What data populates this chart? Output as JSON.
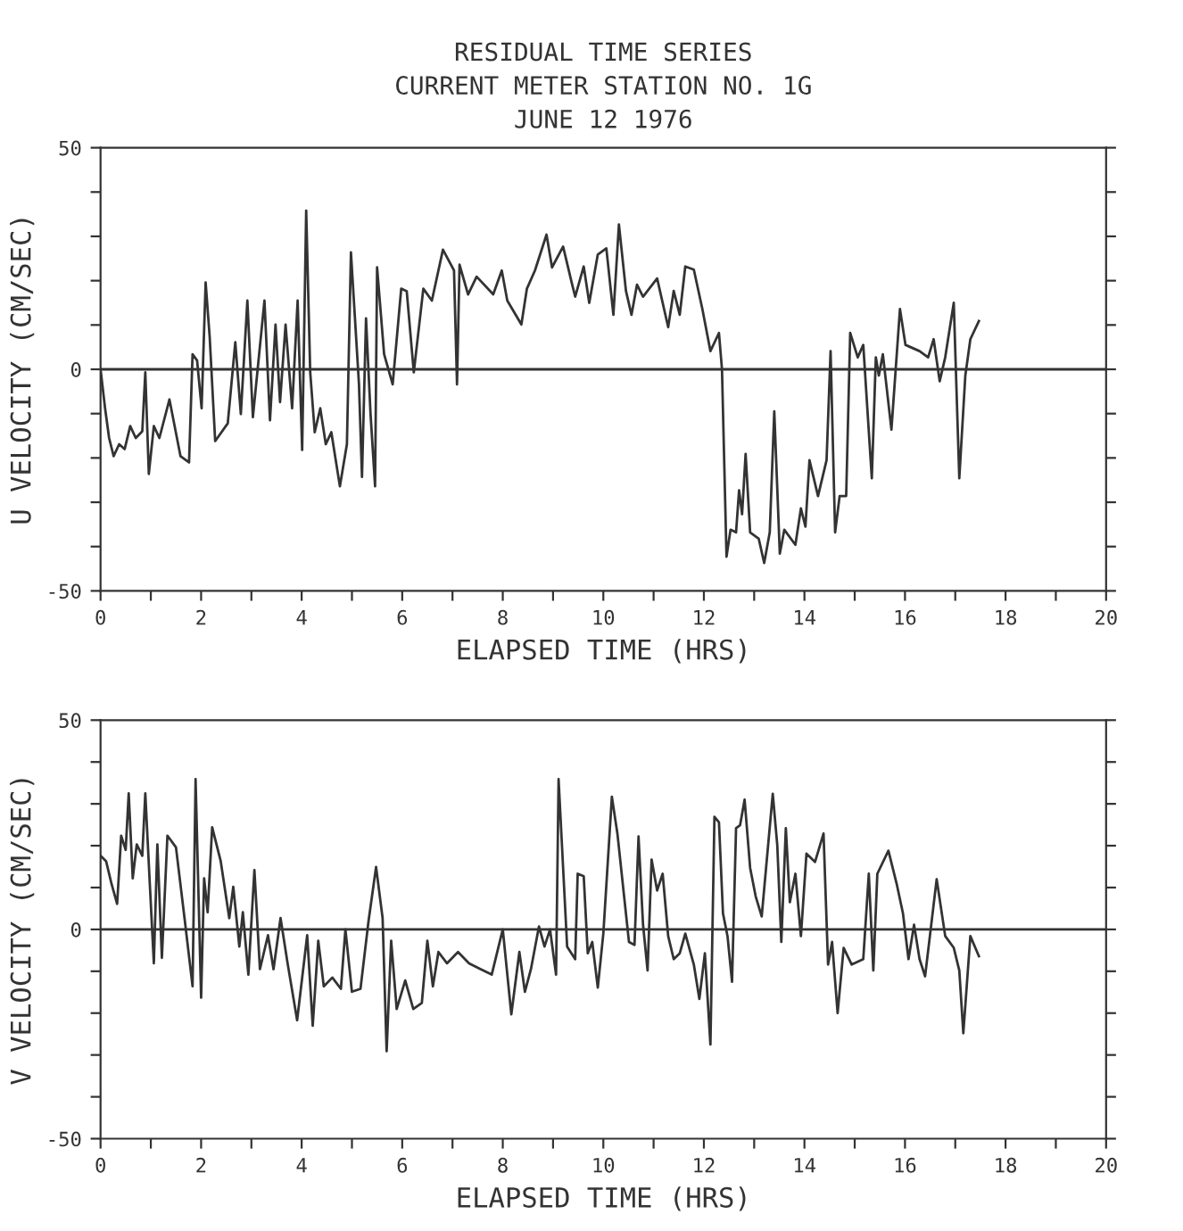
{
  "chart_data": [
    {
      "type": "line",
      "title": "RESIDUAL TIME SERIES",
      "subtitle": "CURRENT METER STATION NO. 1G\nJUNE 12 1976",
      "xlabel": "ELAPSED TIME (HRS)",
      "ylabel": "U VELOCITY (CM/SEC)",
      "xlim": [
        0,
        20
      ],
      "ylim": [
        -50,
        50
      ],
      "xticks": [
        0,
        {
          "value": 1,
          "label": null
        },
        2,
        {
          "value": 3,
          "label": null
        },
        4,
        {
          "value": 5,
          "label": null
        },
        6,
        {
          "value": 7,
          "label": null
        },
        8,
        {
          "value": 9,
          "label": null
        },
        10,
        {
          "value": 11,
          "label": null
        },
        12,
        {
          "value": 13,
          "label": null
        },
        14,
        {
          "value": 15,
          "label": null
        },
        16,
        {
          "value": 17,
          "label": null
        },
        18,
        {
          "value": 19,
          "label": null
        },
        20
      ],
      "yticks": [
        -50,
        {
          "value": -40,
          "label": null
        },
        {
          "value": -30,
          "label": null
        },
        {
          "value": -20,
          "label": null
        },
        {
          "value": -10,
          "label": null
        },
        0,
        {
          "value": 10,
          "label": null
        },
        {
          "value": 20,
          "label": null
        },
        {
          "value": 30,
          "label": null
        },
        {
          "value": 40,
          "label": null
        },
        50
      ],
      "ref_lines": [
        {
          "axis": "y",
          "value": 0,
          "color": "#333333"
        }
      ],
      "grid": false,
      "legend": false,
      "marker": "none",
      "line_style": "solid",
      "series": [
        {
          "color": "#333333",
          "x": [
            0,
            0.09,
            0.17,
            0.26,
            0.37,
            0.48,
            0.59,
            0.7,
            0.83,
            0.89,
            0.96,
            1.06,
            1.17,
            1.37,
            1.59,
            1.76,
            1.83,
            1.92,
            2.01,
            2.09,
            2.17,
            2.28,
            2.53,
            2.68,
            2.79,
            2.92,
            3.03,
            3.26,
            3.37,
            3.48,
            3.57,
            3.68,
            3.81,
            3.92,
            4.01,
            4.09,
            4.17,
            4.26,
            4.37,
            4.48,
            4.59,
            4.76,
            4.9,
            4.98,
            5.14,
            5.2,
            5.28,
            5.37,
            5.46,
            5.5,
            5.64,
            5.81,
            5.98,
            6.09,
            6.23,
            6.42,
            6.59,
            6.81,
            7.03,
            7.09,
            7.14,
            7.31,
            7.48,
            7.81,
            7.98,
            8.09,
            8.37,
            8.48,
            8.64,
            8.87,
            8.98,
            9.2,
            9.37,
            9.44,
            9.61,
            9.72,
            9.89,
            10.06,
            10.2,
            10.31,
            10.45,
            10.56,
            10.67,
            10.79,
            11.07,
            11.29,
            11.4,
            11.52,
            11.63,
            11.8,
            11.97,
            12.13,
            12.3,
            12.36,
            12.45,
            12.53,
            12.64,
            12.7,
            12.76,
            12.83,
            12.92,
            13.09,
            13.2,
            13.31,
            13.4,
            13.51,
            13.6,
            13.82,
            13.93,
            14.02,
            14.1,
            14.27,
            14.44,
            14.52,
            14.61,
            14.7,
            14.83,
            14.91,
            15.06,
            15.17,
            15.34,
            15.42,
            15.48,
            15.56,
            15.73,
            15.9,
            16.01,
            16.29,
            16.46,
            16.57,
            16.69,
            16.8,
            16.97,
            17.08,
            17.2,
            17.3,
            17.47
          ],
          "values": [
            0,
            -8.8,
            -15.5,
            -19.6,
            -16.9,
            -18,
            -12.8,
            -15.5,
            -14,
            -0.7,
            -23.6,
            -12.8,
            -15.5,
            -6.8,
            -19.6,
            -21,
            3.4,
            2,
            -8.8,
            19.6,
            7.4,
            -16.2,
            -12.2,
            6.1,
            -10.1,
            15.5,
            -10.8,
            15.5,
            -11.5,
            10.1,
            -7.4,
            10.1,
            -8.8,
            15.5,
            -18.2,
            35.8,
            -0.7,
            -14.2,
            -8.8,
            -16.9,
            -14.2,
            -26.4,
            -16.9,
            26.4,
            -3.4,
            -24.3,
            11.5,
            -10.1,
            -26.4,
            23,
            3.4,
            -3.4,
            18.2,
            17.6,
            -0.7,
            18.2,
            15.5,
            27,
            22.3,
            -3.4,
            23.6,
            16.9,
            20.9,
            16.9,
            22.3,
            15.5,
            10.1,
            18.2,
            22.3,
            30.4,
            23,
            27.7,
            19.6,
            16.4,
            23.2,
            15,
            25.9,
            27.3,
            12.3,
            32.7,
            17.7,
            12.3,
            19.1,
            16.4,
            20.5,
            9.5,
            17.7,
            12.3,
            23.2,
            22.5,
            13.6,
            4.1,
            8.2,
            0,
            -42.3,
            -36.2,
            -36.8,
            -27.3,
            -32.7,
            -19.1,
            -36.8,
            -38.2,
            -43.7,
            -36.8,
            -9.5,
            -41.6,
            -36.2,
            -39.6,
            -31.4,
            -35.5,
            -20.5,
            -28.6,
            -20.5,
            4.1,
            -36.8,
            -28.6,
            -28.6,
            8.2,
            2.7,
            5.5,
            -24.6,
            2.7,
            -1.4,
            3.4,
            -13.6,
            13.6,
            5.5,
            4.1,
            2.7,
            6.8,
            -2.7,
            2.7,
            15,
            -24.6,
            -1.4,
            6.8,
            10.9
          ]
        }
      ]
    },
    {
      "type": "line",
      "xlabel": "ELAPSED TIME (HRS)",
      "ylabel": "V VELOCITY (CM/SEC)",
      "xlim": [
        0,
        20
      ],
      "ylim": [
        -50,
        50
      ],
      "xticks": [
        0,
        {
          "value": 1,
          "label": null
        },
        2,
        {
          "value": 3,
          "label": null
        },
        4,
        {
          "value": 5,
          "label": null
        },
        6,
        {
          "value": 7,
          "label": null
        },
        8,
        {
          "value": 9,
          "label": null
        },
        10,
        {
          "value": 11,
          "label": null
        },
        12,
        {
          "value": 13,
          "label": null
        },
        14,
        {
          "value": 15,
          "label": null
        },
        16,
        {
          "value": 17,
          "label": null
        },
        18,
        {
          "value": 19,
          "label": null
        },
        20
      ],
      "yticks": [
        -50,
        {
          "value": -40,
          "label": null
        },
        {
          "value": -30,
          "label": null
        },
        {
          "value": -20,
          "label": null
        },
        {
          "value": -10,
          "label": null
        },
        0,
        {
          "value": 10,
          "label": null
        },
        {
          "value": 20,
          "label": null
        },
        {
          "value": 30,
          "label": null
        },
        {
          "value": 40,
          "label": null
        },
        50
      ],
      "ref_lines": [
        {
          "axis": "y",
          "value": 0,
          "color": "#333333"
        }
      ],
      "grid": false,
      "legend": false,
      "marker": "none",
      "line_style": "solid",
      "series": [
        {
          "color": "#333333",
          "x": [
            0,
            0.11,
            0.22,
            0.33,
            0.41,
            0.5,
            0.56,
            0.64,
            0.72,
            0.83,
            0.89,
            0.98,
            1.06,
            1.13,
            1.22,
            1.33,
            1.5,
            1.67,
            1.83,
            1.89,
            2.0,
            2.06,
            2.13,
            2.22,
            2.39,
            2.56,
            2.64,
            2.76,
            2.83,
            2.94,
            3.06,
            3.17,
            3.33,
            3.44,
            3.58,
            3.72,
            3.91,
            4.11,
            4.22,
            4.33,
            4.44,
            4.61,
            4.78,
            4.87,
            5.0,
            5.17,
            5.33,
            5.48,
            5.61,
            5.69,
            5.78,
            5.89,
            6.06,
            6.22,
            6.39,
            6.5,
            6.61,
            6.72,
            6.89,
            7.11,
            7.33,
            7.56,
            7.78,
            8.0,
            8.17,
            8.33,
            8.44,
            8.56,
            8.72,
            8.83,
            8.94,
            9.06,
            9.11,
            9.28,
            9.44,
            9.49,
            9.61,
            9.69,
            9.78,
            9.89,
            10,
            10.17,
            10.28,
            10.51,
            10.62,
            10.7,
            10.79,
            10.88,
            10.96,
            11.07,
            11.18,
            11.29,
            11.4,
            11.52,
            11.63,
            11.8,
            11.91,
            12.02,
            12.13,
            12.21,
            12.3,
            12.38,
            12.47,
            12.56,
            12.64,
            12.72,
            12.81,
            12.92,
            13.03,
            13.15,
            13.37,
            13.46,
            13.54,
            13.63,
            13.71,
            13.82,
            13.93,
            14.04,
            14.21,
            14.38,
            14.47,
            14.55,
            14.66,
            14.78,
            14.94,
            15.17,
            15.28,
            15.37,
            15.45,
            15.67,
            15.84,
            15.96,
            16.07,
            16.18,
            16.29,
            16.4,
            16.63,
            16.8,
            16.97,
            17.08,
            17.16,
            17.3,
            17.47
          ],
          "values": [
            17.6,
            16.3,
            10.8,
            6.1,
            22.4,
            19,
            32.5,
            12.2,
            20.3,
            17.6,
            32.5,
            10.8,
            -8.1,
            20.3,
            -6.8,
            22.4,
            19.6,
            2.7,
            -13.6,
            35.9,
            -16.3,
            12.2,
            4.1,
            24.4,
            16.3,
            2.7,
            10.2,
            -4.1,
            4.1,
            -10.8,
            14.2,
            -9.5,
            -1.4,
            -9.5,
            2.7,
            -8.1,
            -21.7,
            -1.4,
            -23,
            -2.7,
            -13.6,
            -11.5,
            -14.2,
            0,
            -14.9,
            -14.2,
            2,
            14.9,
            2.7,
            -29.1,
            -2.7,
            -19,
            -12.2,
            -19,
            -17.6,
            -2.7,
            -13.6,
            -5.4,
            -8.1,
            -5.4,
            -8.1,
            -9.5,
            -10.8,
            0,
            -20.3,
            -5.4,
            -14.9,
            -9.5,
            0.7,
            -4.1,
            0,
            -10.8,
            35.9,
            -4.1,
            -7.1,
            13.3,
            12.7,
            -5.7,
            -3,
            -13.9,
            -1,
            31.7,
            22.9,
            -3,
            -3.7,
            22.2,
            1.1,
            -9.8,
            16.7,
            9.3,
            13.3,
            -1.6,
            -7.1,
            -5.7,
            -1,
            -8.4,
            -16.6,
            -5.7,
            -27.5,
            26.9,
            25.6,
            3.8,
            -1.6,
            -12.5,
            24.2,
            24.9,
            31,
            14.7,
            7.9,
            3.1,
            32.4,
            20.1,
            -3,
            24.2,
            6.5,
            13.3,
            -1.6,
            18.1,
            16.1,
            22.9,
            -8.4,
            -3,
            -20,
            -4.4,
            -8.4,
            -7.1,
            13.3,
            -9.8,
            13.3,
            18.8,
            10.6,
            3.8,
            -7.1,
            1.1,
            -7.1,
            -11.2,
            12,
            -1.6,
            -4.4,
            -9.8,
            -24.8,
            -1.6,
            -6.4
          ]
        }
      ]
    }
  ]
}
